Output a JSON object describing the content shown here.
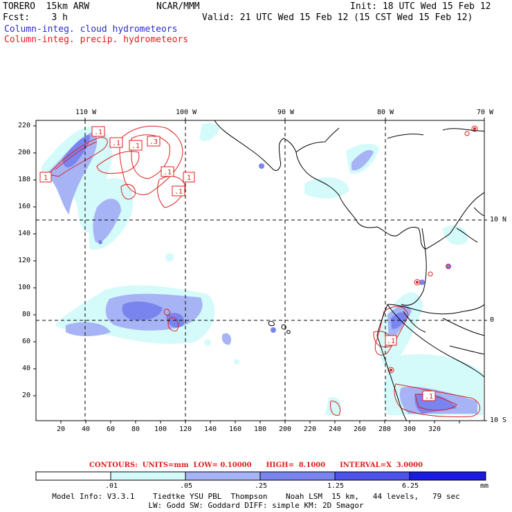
{
  "header": {
    "model": "TORERO  15km ARW",
    "org": "NCAR/MMM",
    "init": "Init: 18 UTC Wed 15 Feb 12",
    "fcst": "Fcst:    3 h",
    "valid": "Valid: 21 UTC Wed 15 Feb 12 (15 CST Wed 15 Feb 12)",
    "field1": "Column-integ. cloud hydrometeors",
    "field2": "Column-integ. precip. hydrometeors"
  },
  "map": {
    "top_lon_labels": [
      "110 W",
      "100 W",
      "90 W",
      "80 W",
      "70 W"
    ],
    "right_lat_labels": [
      "10 N",
      "0",
      "10 S"
    ],
    "x_ticks": [
      "20",
      "40",
      "60",
      "80",
      "100",
      "120",
      "140",
      "160",
      "180",
      "200",
      "220",
      "240",
      "260",
      "280",
      "300",
      "320"
    ],
    "y_ticks": [
      "220",
      "200",
      "180",
      "160",
      "140",
      "120",
      "100",
      "80",
      "60",
      "40",
      "20"
    ],
    "contour_labels": [
      ".1",
      ".1",
      ".1",
      ".3",
      "1",
      ".1",
      ".1",
      "1",
      ".1",
      ".1"
    ]
  },
  "contours_info": "CONTOURS:  UNITS=mm  LOW= 0.10000      HIGH=  8.1000      INTERVAL=X  3.0000",
  "colorbar": {
    "labels": [
      ".01",
      ".05",
      ".25",
      "1.25",
      "6.25"
    ],
    "unit": "mm",
    "colors": [
      "#ffffff",
      "#d4fafa",
      "#a6b4f5",
      "#7a84ef",
      "#4d53e9",
      "#1a1ae0"
    ]
  },
  "footer": {
    "line1": "Model Info: V3.3.1    Tiedtke YSU PBL  Thompson    Noah LSM  15 km,   44 levels,   79 sec",
    "line2": "LW: Godd SW: Goddard DIFF: simple KM: 2D Smagor"
  },
  "colors": {
    "cloud": "#2a2ad0",
    "precip": "#e01b1b"
  }
}
